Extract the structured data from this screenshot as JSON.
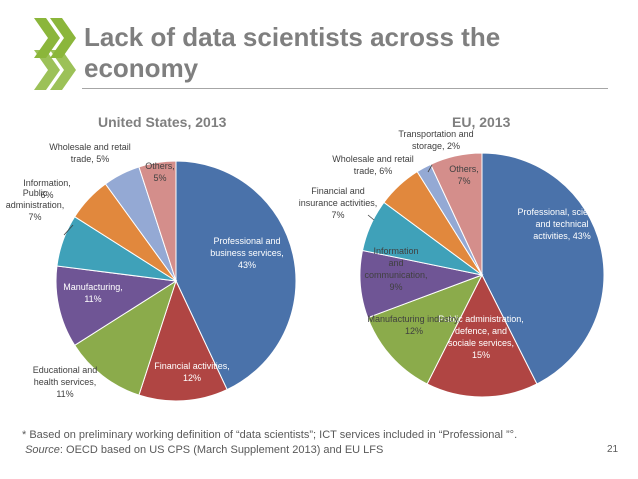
{
  "slide": {
    "title": "Lack of data scientists across the economy",
    "page_number": "21",
    "footnote_line1": "* Based on preliminary working definition of “data scientists”; ICT services included in “Professional ”°.",
    "source_label": "Source",
    "source_text": ": OECD based on US CPS (March Supplement 2013) and EU LFS"
  },
  "colors": {
    "title": "#7f7f7f",
    "logo_green": "#8bb63b"
  },
  "chart_data": [
    {
      "type": "pie",
      "title": "United States, 2013",
      "slices": [
        {
          "label": "Professional and business services, 43%",
          "value": 43,
          "color": "#4a72aa"
        },
        {
          "label": "Financial activities, 12%",
          "value": 12,
          "color": "#b04543"
        },
        {
          "label": "Educational and health services, 11%",
          "value": 11,
          "color": "#8bab4b"
        },
        {
          "label": "Manufacturing, 11%",
          "value": 11,
          "color": "#6f5595"
        },
        {
          "label": "Public administration, 7%",
          "value": 7,
          "color": "#3fa1b9"
        },
        {
          "label": "Information, 6%",
          "value": 6,
          "color": "#e1883d"
        },
        {
          "label": "Wholesale and retail trade, 5%",
          "value": 5,
          "color": "#94a9d4"
        },
        {
          "label": "Others, 5%",
          "value": 5,
          "color": "#d48e8b"
        }
      ]
    },
    {
      "type": "pie",
      "title": "EU, 2013",
      "slices": [
        {
          "label": "Professional, scientific and technical activities, 43%",
          "value": 43,
          "color": "#4a72aa"
        },
        {
          "label": "Public administration, defence, and sociale services, 15%",
          "value": 15,
          "color": "#b04543"
        },
        {
          "label": "Manufacturing industry, 12%",
          "value": 12,
          "color": "#8bab4b"
        },
        {
          "label": "Information and communication, 9%",
          "value": 9,
          "color": "#6f5595"
        },
        {
          "label": "Financial and insurance activities, 7%",
          "value": 7,
          "color": "#3fa1b9"
        },
        {
          "label": "Wholesale and retail trade, 6%",
          "value": 6,
          "color": "#e1883d"
        },
        {
          "label": "Transportation and storage, 2%",
          "value": 2,
          "color": "#94a9d4"
        },
        {
          "label": "Others, 7%",
          "value": 7,
          "color": "#d48e8b"
        }
      ]
    }
  ]
}
